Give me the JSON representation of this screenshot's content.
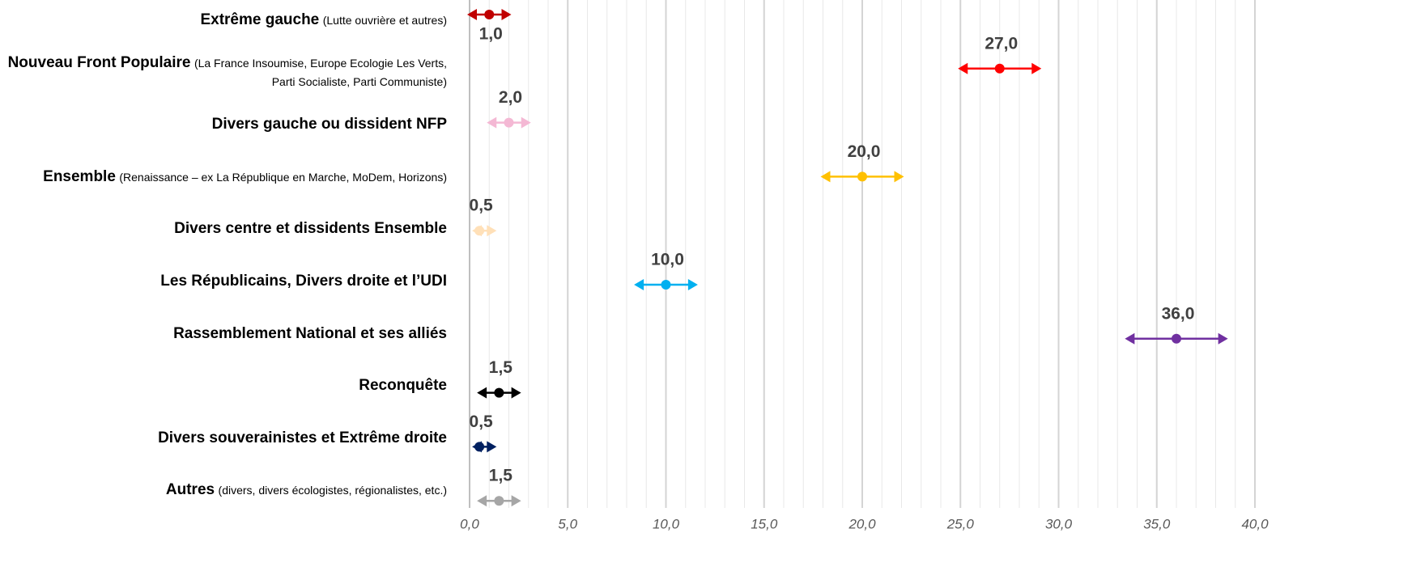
{
  "chart_data": {
    "type": "dot_range",
    "categories": [
      "Extrême gauche",
      "Nouveau Front Populaire",
      "Divers gauche ou dissident NFP",
      "Ensemble",
      "Divers centre et dissidents Ensemble",
      "Les Républicains, Divers droite et l’UDI",
      "Rassemblement National et ses alliés",
      "Reconquête",
      "Divers souverainistes et Extrême droite",
      "Autres"
    ],
    "notes": [
      "(Lutte ouvrière et autres)",
      "(La France Insoumise, Europe Ecologie Les Verts, Parti Socialiste, Parti Communiste)",
      null,
      "(Renaissance – ex La République en Marche, MoDem, Horizons)",
      null,
      null,
      null,
      null,
      null,
      "(divers, divers écologistes, régionalistes, etc.)"
    ],
    "values": [
      1.0,
      27.0,
      2.0,
      20.0,
      0.5,
      10.0,
      36.0,
      1.5,
      0.5,
      1.5
    ],
    "value_labels": [
      "1,0",
      "27,0",
      "2,0",
      "20,0",
      "0,5",
      "10,0",
      "36,0",
      "1,5",
      "0,5",
      "1,5"
    ],
    "low": [
      0,
      25,
      1,
      18,
      0.25,
      8.5,
      33.5,
      0.5,
      0.25,
      0.5
    ],
    "high": [
      2,
      29,
      3,
      22,
      1.25,
      11.5,
      38.5,
      2.5,
      1.25,
      2.5
    ],
    "colors": [
      "#c00000",
      "#ff0000",
      "#f4b8d4",
      "#ffc000",
      "#ffe0b8",
      "#00b0f0",
      "#7030a0",
      "#000000",
      "#002060",
      "#a6a6a6"
    ],
    "xlim": [
      0,
      40
    ],
    "xticks": [
      {
        "value": 0,
        "label": "0,0"
      },
      {
        "value": 5,
        "label": "5,0"
      },
      {
        "value": 10,
        "label": "10,0"
      },
      {
        "value": 15,
        "label": "15,0"
      },
      {
        "value": 20,
        "label": "20,0"
      },
      {
        "value": 25,
        "label": "25,0"
      },
      {
        "value": 30,
        "label": "30,0"
      },
      {
        "value": 35,
        "label": "35,0"
      },
      {
        "value": 40,
        "label": "40,0"
      }
    ],
    "grid": true,
    "minor_grid": true
  }
}
